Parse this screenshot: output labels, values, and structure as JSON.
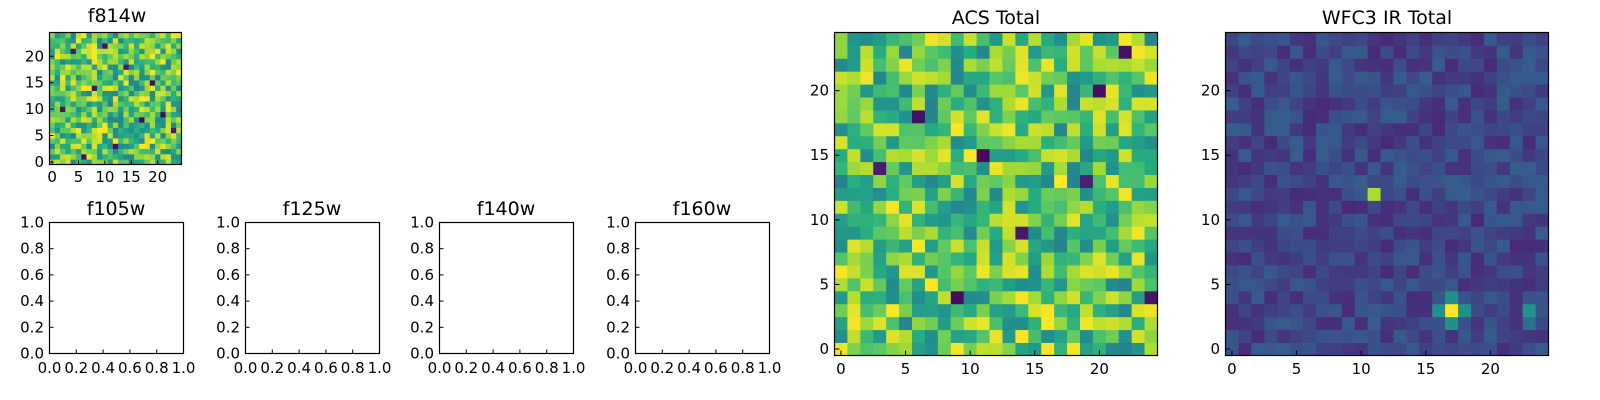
{
  "figure": {
    "background": "#ffffff",
    "colormap": "viridis",
    "colormap_stops": [
      "#440154",
      "#472c7a",
      "#3b518b",
      "#2c718e",
      "#21908d",
      "#27ad81",
      "#5cc863",
      "#aadc32",
      "#fde725"
    ]
  },
  "chart_data": [
    {
      "id": "f814w",
      "type": "heatmap",
      "title": "f814w",
      "grid_size": 25,
      "x_ticks": [
        0,
        5,
        10,
        15,
        20
      ],
      "y_ticks": [
        0,
        5,
        10,
        15,
        20
      ],
      "value_range": [
        0,
        1
      ],
      "typical_value_range": [
        0.45,
        1.0
      ],
      "dark_cells": [
        [
          4,
          21
        ],
        [
          14,
          18
        ],
        [
          17,
          8
        ],
        [
          21,
          9
        ],
        [
          12,
          3
        ],
        [
          8,
          14
        ],
        [
          23,
          6
        ],
        [
          2,
          10
        ],
        [
          19,
          15
        ],
        [
          6,
          1
        ],
        [
          10,
          22
        ]
      ]
    },
    {
      "id": "f105w",
      "type": "empty",
      "title": "f105w",
      "x_ticks": [
        "0.0",
        "0.2",
        "0.4",
        "0.6",
        "0.8",
        "1.0"
      ],
      "y_ticks": [
        "0.0",
        "0.2",
        "0.4",
        "0.6",
        "0.8",
        "1.0"
      ],
      "xlim": [
        0,
        1
      ],
      "ylim": [
        0,
        1
      ]
    },
    {
      "id": "f125w",
      "type": "empty",
      "title": "f125w",
      "x_ticks": [
        "0.0",
        "0.2",
        "0.4",
        "0.6",
        "0.8",
        "1.0"
      ],
      "y_ticks": [
        "0.0",
        "0.2",
        "0.4",
        "0.6",
        "0.8",
        "1.0"
      ],
      "xlim": [
        0,
        1
      ],
      "ylim": [
        0,
        1
      ]
    },
    {
      "id": "f140w",
      "type": "empty",
      "title": "f140w",
      "x_ticks": [
        "0.0",
        "0.2",
        "0.4",
        "0.6",
        "0.8",
        "1.0"
      ],
      "y_ticks": [
        "0.0",
        "0.2",
        "0.4",
        "0.6",
        "0.8",
        "1.0"
      ],
      "xlim": [
        0,
        1
      ],
      "ylim": [
        0,
        1
      ]
    },
    {
      "id": "f160w",
      "type": "empty",
      "title": "f160w",
      "x_ticks": [
        "0.0",
        "0.2",
        "0.4",
        "0.6",
        "0.8",
        "1.0"
      ],
      "y_ticks": [
        "0.0",
        "0.2",
        "0.4",
        "0.6",
        "0.8",
        "1.0"
      ],
      "xlim": [
        0,
        1
      ],
      "ylim": [
        0,
        1
      ]
    },
    {
      "id": "acs-total",
      "type": "heatmap",
      "title": "ACS Total",
      "grid_size": 25,
      "x_ticks": [
        0,
        5,
        10,
        15,
        20
      ],
      "y_ticks": [
        0,
        5,
        10,
        15,
        20
      ],
      "value_range": [
        0,
        1
      ],
      "typical_value_range": [
        0.45,
        1.0
      ],
      "dark_cells": [
        [
          22,
          23
        ],
        [
          6,
          18
        ],
        [
          3,
          14
        ],
        [
          19,
          13
        ],
        [
          24,
          4
        ],
        [
          20,
          20
        ],
        [
          11,
          15
        ],
        [
          14,
          9
        ],
        [
          9,
          4
        ]
      ]
    },
    {
      "id": "wfc3-ir-total",
      "type": "heatmap",
      "title": "WFC3 IR Total",
      "grid_size": 25,
      "x_ticks": [
        0,
        5,
        10,
        15,
        20
      ],
      "y_ticks": [
        0,
        5,
        10,
        15,
        20
      ],
      "value_range": [
        0,
        1
      ],
      "typical_value_range": [
        0.12,
        0.3
      ],
      "bright_sources": [
        {
          "x": 17.5,
          "y": 3.5,
          "peak": 1.0,
          "sigma": 0.85
        },
        {
          "x": 11.5,
          "y": 12.5,
          "peak": 0.88,
          "sigma": 0.6
        },
        {
          "x": 23.8,
          "y": 3.1,
          "peak": 0.78,
          "sigma": 0.55
        }
      ]
    }
  ]
}
